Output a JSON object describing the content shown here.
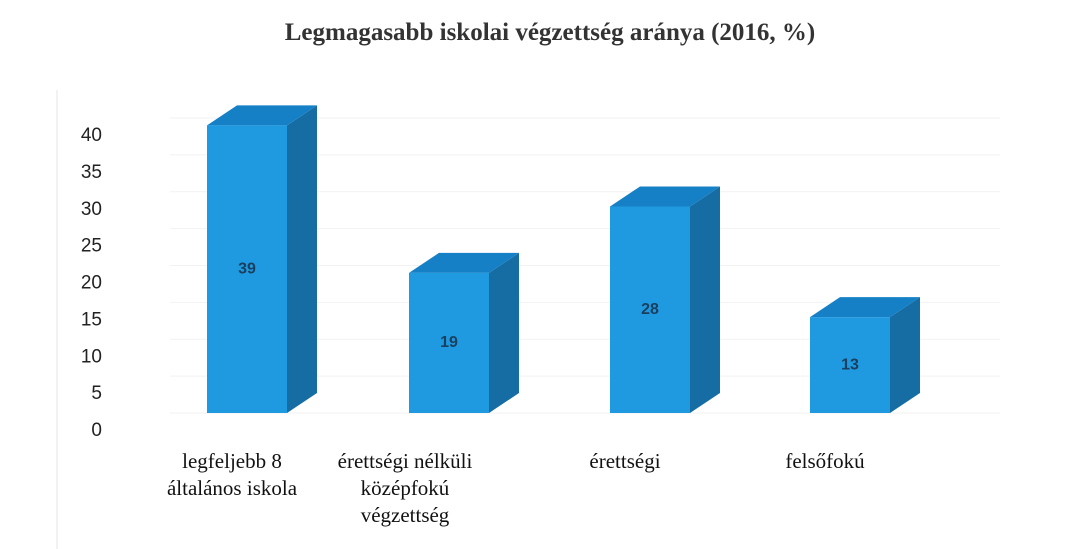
{
  "chart_data": {
    "type": "bar3d",
    "title": "Legmagasabb iskolai végzettség aránya (2016, %)",
    "categories": [
      "legfeljebb 8 általános iskola",
      "érettségi nélküli középfokú végzettség",
      "érettségi",
      "felsőfokú"
    ],
    "values": [
      39,
      19,
      28,
      13
    ],
    "colors": {
      "front": "#1f9ae0",
      "side": "#166da4",
      "top": "#1580c6"
    },
    "ylim": [
      0,
      40
    ],
    "yticks": [
      0,
      5,
      10,
      15,
      20,
      25,
      30,
      35,
      40
    ],
    "grid": true
  }
}
